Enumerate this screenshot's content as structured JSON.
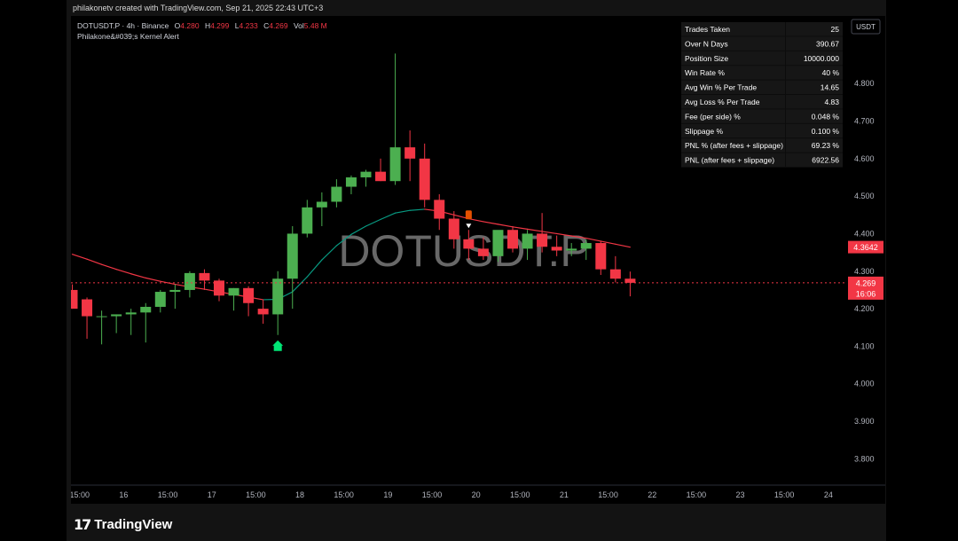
{
  "credit": "philakonetv created with TradingView.com, Sep 21, 2025 22:43 UTC+3",
  "header": {
    "symbol": "DOTUSDT.P · 4h · Binance",
    "o_label": "O",
    "o_value": "4.280",
    "h_label": "H",
    "h_value": "4.299",
    "l_label": "L",
    "l_value": "4.233",
    "c_label": "C",
    "c_value": "4.269",
    "vol_label": "Vol",
    "vol_value": "5.48 M",
    "indicator": "Philakone&#039;s Kernel Alert"
  },
  "watermark": "DOTUSDT.P",
  "currency_button": "USDT",
  "footer_brand": "TradingView",
  "stats": [
    {
      "label": "Trades Taken",
      "value": "25"
    },
    {
      "label": "Over N Days",
      "value": "390.67"
    },
    {
      "label": "Position Size",
      "value": "10000.000"
    },
    {
      "label": "Win Rate %",
      "value": "40 %"
    },
    {
      "label": "Avg Win % Per Trade",
      "value": "14.65"
    },
    {
      "label": "Avg Loss % Per Trade",
      "value": "4.83"
    },
    {
      "label": "Fee (per side) %",
      "value": "0.048 %"
    },
    {
      "label": "Slippage %",
      "value": "0.100 %"
    },
    {
      "label": "PNL % (after fees + slippage)",
      "value": "69.23 %"
    },
    {
      "label": "PNL (after fees + slippage)",
      "value": "6922.56"
    }
  ],
  "colors": {
    "up": "#4caf50",
    "down": "#f23645",
    "kernel_down": "#f23645",
    "kernel_up": "#089981",
    "signal_buy": "#00e676",
    "signal_sell": "#e65100"
  },
  "chart_data": {
    "type": "candlestick",
    "symbol": "DOTUSDT.P",
    "timeframe": "4h",
    "ylim": [
      3.73,
      4.98
    ],
    "y_ticks": [
      "4.800",
      "4.700",
      "4.600",
      "4.500",
      "4.400",
      "4.300",
      "4.200",
      "4.100",
      "4.000",
      "3.900",
      "3.800"
    ],
    "x_ticks": [
      "15:00",
      "16",
      "15:00",
      "17",
      "15:00",
      "18",
      "15:00",
      "19",
      "15:00",
      "20",
      "15:00",
      "21",
      "15:00",
      "22",
      "15:00",
      "23",
      "15:00",
      "24"
    ],
    "x_tick_index": [
      0.5,
      3.5,
      6.5,
      9.5,
      12.5,
      15.5,
      18.5,
      21.5,
      24.5,
      27.5,
      30.5,
      33.5,
      36.5,
      39.5,
      42.5,
      45.5,
      48.5,
      51.5
    ],
    "candles": [
      {
        "o": 4.25,
        "h": 4.265,
        "l": 4.2,
        "c": 4.2
      },
      {
        "o": 4.225,
        "h": 4.23,
        "l": 4.12,
        "c": 4.18
      },
      {
        "o": 4.18,
        "h": 4.195,
        "l": 4.105,
        "c": 4.18
      },
      {
        "o": 4.18,
        "h": 4.185,
        "l": 4.135,
        "c": 4.185
      },
      {
        "o": 4.185,
        "h": 4.2,
        "l": 4.13,
        "c": 4.19
      },
      {
        "o": 4.19,
        "h": 4.215,
        "l": 4.11,
        "c": 4.205
      },
      {
        "o": 4.205,
        "h": 4.25,
        "l": 4.19,
        "c": 4.245
      },
      {
        "o": 4.245,
        "h": 4.265,
        "l": 4.2,
        "c": 4.25
      },
      {
        "o": 4.25,
        "h": 4.3,
        "l": 4.23,
        "c": 4.295
      },
      {
        "o": 4.295,
        "h": 4.305,
        "l": 4.25,
        "c": 4.275
      },
      {
        "o": 4.275,
        "h": 4.28,
        "l": 4.22,
        "c": 4.235
      },
      {
        "o": 4.235,
        "h": 4.255,
        "l": 4.195,
        "c": 4.255
      },
      {
        "o": 4.255,
        "h": 4.26,
        "l": 4.18,
        "c": 4.215
      },
      {
        "o": 4.2,
        "h": 4.225,
        "l": 4.16,
        "c": 4.185
      },
      {
        "o": 4.185,
        "h": 4.3,
        "l": 4.13,
        "c": 4.28
      },
      {
        "o": 4.28,
        "h": 4.42,
        "l": 4.2,
        "c": 4.4
      },
      {
        "o": 4.4,
        "h": 4.49,
        "l": 4.39,
        "c": 4.47
      },
      {
        "o": 4.47,
        "h": 4.51,
        "l": 4.42,
        "c": 4.485
      },
      {
        "o": 4.485,
        "h": 4.545,
        "l": 4.47,
        "c": 4.525
      },
      {
        "o": 4.525,
        "h": 4.555,
        "l": 4.505,
        "c": 4.55
      },
      {
        "o": 4.55,
        "h": 4.57,
        "l": 4.525,
        "c": 4.565
      },
      {
        "o": 4.565,
        "h": 4.6,
        "l": 4.54,
        "c": 4.54
      },
      {
        "o": 4.54,
        "h": 4.88,
        "l": 4.53,
        "c": 4.63
      },
      {
        "o": 4.63,
        "h": 4.675,
        "l": 4.54,
        "c": 4.6
      },
      {
        "o": 4.6,
        "h": 4.64,
        "l": 4.47,
        "c": 4.49
      },
      {
        "o": 4.49,
        "h": 4.505,
        "l": 4.41,
        "c": 4.44
      },
      {
        "o": 4.44,
        "h": 4.46,
        "l": 4.36,
        "c": 4.385
      },
      {
        "o": 4.385,
        "h": 4.41,
        "l": 4.33,
        "c": 4.36
      },
      {
        "o": 4.36,
        "h": 4.39,
        "l": 4.33,
        "c": 4.34
      },
      {
        "o": 4.34,
        "h": 4.405,
        "l": 4.325,
        "c": 4.41
      },
      {
        "o": 4.41,
        "h": 4.42,
        "l": 4.35,
        "c": 4.36
      },
      {
        "o": 4.36,
        "h": 4.41,
        "l": 4.33,
        "c": 4.4
      },
      {
        "o": 4.4,
        "h": 4.455,
        "l": 4.35,
        "c": 4.365
      },
      {
        "o": 4.365,
        "h": 4.395,
        "l": 4.34,
        "c": 4.355
      },
      {
        "o": 4.355,
        "h": 4.375,
        "l": 4.34,
        "c": 4.36
      },
      {
        "o": 4.36,
        "h": 4.385,
        "l": 4.33,
        "c": 4.375
      },
      {
        "o": 4.375,
        "h": 4.38,
        "l": 4.29,
        "c": 4.305
      },
      {
        "o": 4.305,
        "h": 4.34,
        "l": 4.27,
        "c": 4.28
      },
      {
        "o": 4.28,
        "h": 4.299,
        "l": 4.233,
        "c": 4.269
      }
    ],
    "kernel": {
      "start_index": 0,
      "values": [
        4.345,
        4.332,
        4.318,
        4.305,
        4.293,
        4.282,
        4.273,
        4.265,
        4.258,
        4.252,
        4.245,
        4.238,
        4.231,
        4.224,
        4.225,
        4.245,
        4.285,
        4.33,
        4.368,
        4.398,
        4.42,
        4.438,
        4.455,
        4.462,
        4.465,
        4.46,
        4.45,
        4.44,
        4.432,
        4.425,
        4.418,
        4.412,
        4.406,
        4.4,
        4.394,
        4.388,
        4.38,
        4.372,
        4.364
      ]
    },
    "signals": [
      {
        "index": 14,
        "side": "buy"
      },
      {
        "index": 27,
        "side": "sell"
      }
    ],
    "last_price_label": "4.269",
    "countdown_label": "16:06",
    "kernel_price_label": "4.3642"
  }
}
